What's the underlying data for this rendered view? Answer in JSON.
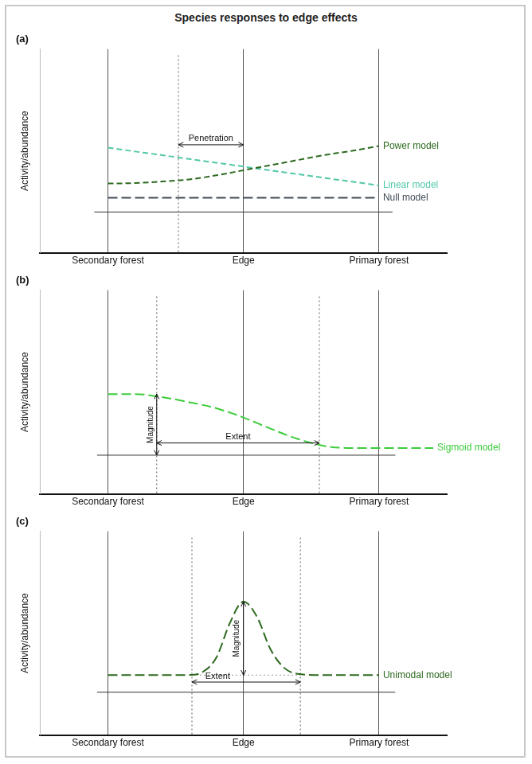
{
  "title": "Species responses to edge effects",
  "chart_data": [
    {
      "type": "line",
      "title": "(a)",
      "y_label": "Activity/abundance",
      "x": [
        0,
        10,
        20,
        30,
        40,
        50,
        60,
        70,
        80,
        90,
        100
      ],
      "series": [
        {
          "name": "Power model",
          "color": "#2d6a1f",
          "line_style": "dashed",
          "values": [
            34,
            34.2,
            35,
            36,
            38,
            40.5,
            43,
            45.5,
            48,
            50,
            52.4
          ]
        },
        {
          "name": "Linear model",
          "color": "#52c7a8",
          "line_style": "dashed",
          "values": [
            51.6,
            49.7,
            47.9,
            46,
            44.2,
            42.3,
            40.4,
            38.6,
            36.7,
            34.9,
            33
          ]
        },
        {
          "name": "Null model",
          "color": "#3f4a55",
          "line_style": "long-dashed",
          "values": [
            27,
            27,
            27,
            27,
            27,
            27,
            27,
            27,
            27,
            27,
            27
          ]
        }
      ],
      "xlim": [
        -25,
        125
      ],
      "xticks": [
        {
          "value": 0,
          "label": "Secondary forest"
        },
        {
          "value": 50,
          "label": "Edge"
        },
        {
          "value": 100,
          "label": "Primary forest"
        }
      ],
      "ylim": [
        0,
        100
      ],
      "yticks": [],
      "grid": true,
      "tick_labels": "x",
      "baseline": {
        "y": 20,
        "from": -5,
        "to": 105
      },
      "dotted_lines": [
        26
      ],
      "annotations": [
        {
          "text": "Penetration",
          "direction": "horizontal",
          "from": 26,
          "to": 50,
          "at": 53
        }
      ]
    },
    {
      "type": "line",
      "title": "(b)",
      "y_label": "Activity/abundance",
      "x": [
        0,
        10,
        20,
        30,
        40,
        50,
        60,
        70,
        80,
        90,
        100,
        110,
        120
      ],
      "series": [
        {
          "name": "Sigmoid model",
          "color": "#3ccc3c",
          "line_style": "long-dashed",
          "values": [
            49,
            49,
            47.5,
            45,
            42,
            37.5,
            32,
            27,
            23.5,
            22.5,
            22.5,
            22.5,
            22.5
          ]
        }
      ],
      "xlim": [
        -25,
        125
      ],
      "xticks": [
        {
          "value": 0,
          "label": "Secondary forest"
        },
        {
          "value": 50,
          "label": "Edge"
        },
        {
          "value": 100,
          "label": "Primary forest"
        }
      ],
      "ylim": [
        0,
        100
      ],
      "yticks": [],
      "grid": true,
      "tick_labels": "x",
      "baseline": {
        "y": 19,
        "from": -4,
        "to": 106
      },
      "dotted_lines": [
        18,
        78
      ],
      "annotations": [
        {
          "text": "Magnitude",
          "direction": "vertical",
          "from": 19,
          "to": 49,
          "at": 18
        },
        {
          "text": "Extent",
          "direction": "horizontal",
          "from": 18,
          "to": 78,
          "at": 25
        }
      ]
    },
    {
      "type": "line",
      "title": "(c)",
      "y_label": "Activity/abundance",
      "x": [
        0,
        10,
        20,
        30,
        35,
        40,
        45,
        50,
        55,
        60,
        65,
        70,
        80,
        90,
        100
      ],
      "series": [
        {
          "name": "Unimodal model",
          "color": "#2d6a1f",
          "line_style": "long-dashed",
          "values": [
            29.4,
            29.4,
            29.4,
            29.5,
            31,
            38,
            55,
            65.5,
            58,
            42,
            33,
            30,
            29.4,
            29.4,
            29.4
          ]
        }
      ],
      "xlim": [
        -25,
        125
      ],
      "xticks": [
        {
          "value": 0,
          "label": "Secondary forest"
        },
        {
          "value": 50,
          "label": "Edge"
        },
        {
          "value": 100,
          "label": "Primary forest"
        }
      ],
      "ylim": [
        0,
        100
      ],
      "yticks": [],
      "grid": true,
      "tick_labels": "x",
      "baseline": {
        "y": 21,
        "from": -4,
        "to": 106
      },
      "dotted_lines": [
        31,
        71
      ],
      "dotted_hlines": [
        {
          "y": 29.4,
          "from": 31,
          "to": 71
        }
      ],
      "annotations": [
        {
          "text": "Magnitude",
          "direction": "vertical",
          "from": 29.4,
          "to": 65.5,
          "at": 50
        },
        {
          "text": "Extent",
          "direction": "horizontal",
          "from": 31,
          "to": 71,
          "at": 26
        }
      ]
    }
  ]
}
